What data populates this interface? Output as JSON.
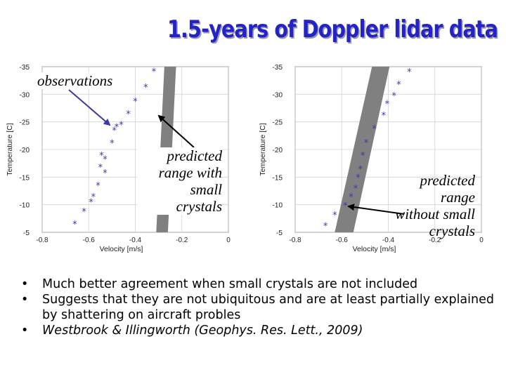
{
  "slide": {
    "title": "1.5-years of Doppler lidar data",
    "annotations": {
      "observations": "observations",
      "predicted_with": [
        "predicted",
        "range with",
        "small",
        "crystals"
      ],
      "predicted_without": [
        "predicted",
        "range",
        "without small",
        "crystals"
      ]
    },
    "bullets": [
      "Much better agreement when small crystals are not included",
      "Suggests that they are not ubiquitous and are at least partially explained by shattering on aircraft probles",
      "Westbrook & Illingworth (Geophys. Res. Lett., 2009)"
    ]
  },
  "colors": {
    "title": "#2323c8",
    "band": "#808080",
    "marker": "#3a3aa8",
    "arrow": "#3a3aa8"
  },
  "chart_data": [
    {
      "type": "scatter",
      "name": "with-small-crystals",
      "xlabel": "Velocity [m/s]",
      "ylabel": "Temperature [C]",
      "xlim": [
        -0.8,
        0
      ],
      "ylim": [
        -35,
        -5
      ],
      "x_ticks": [
        "-0.8",
        "-0.6",
        "-0.4",
        "-0.2",
        "0"
      ],
      "y_ticks": [
        "-35",
        "-30",
        "-25",
        "-20",
        "-15",
        "-10",
        "-5"
      ],
      "observations": [
        {
          "x": -0.66,
          "y": -6.5
        },
        {
          "x": -0.62,
          "y": -8.8
        },
        {
          "x": -0.59,
          "y": -10.5
        },
        {
          "x": -0.58,
          "y": -11.5
        },
        {
          "x": -0.56,
          "y": -13.5
        },
        {
          "x": -0.53,
          "y": -15.8
        },
        {
          "x": -0.55,
          "y": -16.8
        },
        {
          "x": -0.53,
          "y": -18.3
        },
        {
          "x": -0.545,
          "y": -19.0
        },
        {
          "x": -0.5,
          "y": -21.2
        },
        {
          "x": -0.49,
          "y": -23.5
        },
        {
          "x": -0.48,
          "y": -24.1
        },
        {
          "x": -0.46,
          "y": -24.5
        },
        {
          "x": -0.43,
          "y": -26.5
        },
        {
          "x": -0.4,
          "y": -28.8
        },
        {
          "x": -0.355,
          "y": -31.3
        },
        {
          "x": -0.32,
          "y": -34.2
        }
      ],
      "predicted_band": {
        "lower_edge": [
          {
            "x": -0.31,
            "y": -5
          },
          {
            "x": -0.275,
            "y": -35
          }
        ],
        "upper_edge": [
          {
            "x": -0.26,
            "y": -5
          },
          {
            "x": -0.225,
            "y": -35
          }
        ]
      }
    },
    {
      "type": "scatter",
      "name": "without-small-crystals",
      "xlabel": "Velocity [m/s]",
      "ylabel": "Temperature [C]",
      "xlim": [
        -0.8,
        0
      ],
      "ylim": [
        -35,
        -5
      ],
      "x_ticks": [
        "-0.8",
        "-0.6",
        "-0.4",
        "-0.2",
        "0"
      ],
      "y_ticks": [
        "-35",
        "-30",
        "-25",
        "-20",
        "-15",
        "-10",
        "-5"
      ],
      "observations": [
        {
          "x": -0.67,
          "y": -6.2
        },
        {
          "x": -0.63,
          "y": -8.2
        },
        {
          "x": -0.585,
          "y": -9.9
        },
        {
          "x": -0.56,
          "y": -11.5
        },
        {
          "x": -0.54,
          "y": -13.0
        },
        {
          "x": -0.53,
          "y": -15.0
        },
        {
          "x": -0.52,
          "y": -16.5
        },
        {
          "x": -0.51,
          "y": -19.0
        },
        {
          "x": -0.495,
          "y": -21.3
        },
        {
          "x": -0.46,
          "y": -23.8
        },
        {
          "x": -0.42,
          "y": -26.2
        },
        {
          "x": -0.405,
          "y": -28.3
        },
        {
          "x": -0.375,
          "y": -29.8
        },
        {
          "x": -0.355,
          "y": -31.8
        },
        {
          "x": -0.31,
          "y": -34.1
        }
      ],
      "predicted_band": {
        "lower_edge": [
          {
            "x": -0.63,
            "y": -5
          },
          {
            "x": -0.47,
            "y": -35
          }
        ],
        "upper_edge": [
          {
            "x": -0.55,
            "y": -5
          },
          {
            "x": -0.395,
            "y": -35
          }
        ]
      }
    }
  ]
}
